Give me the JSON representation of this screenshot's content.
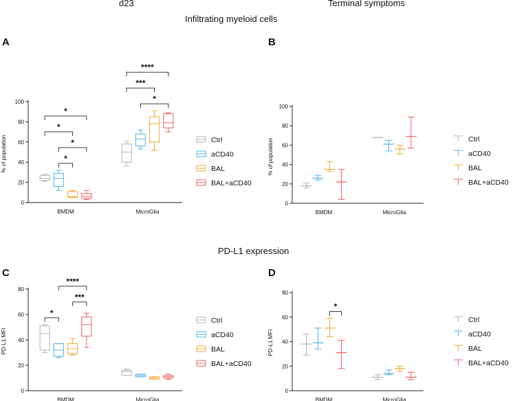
{
  "titles": {
    "left_top": "d23",
    "right_top": "Terminal symptoms",
    "section1": "Infiltrating myeloid cells",
    "section2": "PD-L1 expression"
  },
  "legend": [
    "Ctrl",
    "aCD40",
    "BAL",
    "BAL+aCD40"
  ],
  "colors": {
    "Ctrl": "#b5b5b5",
    "aCD40": "#4fb3e6",
    "BAL": "#f0a830",
    "BAL+aCD40": "#f06060"
  },
  "chart_data": [
    {
      "panel": "A",
      "type": "box",
      "title": "Infiltrating myeloid cells",
      "ylabel": "% of population",
      "ylim": [
        0,
        100
      ],
      "yticks": [
        0,
        20,
        40,
        60,
        80,
        100
      ],
      "categories": [
        "BMDM",
        "MicroGlia"
      ],
      "series": [
        {
          "name": "Ctrl",
          "boxes": [
            {
              "min": 21,
              "q1": 22,
              "med": 24,
              "q3": 27,
              "max": 28
            },
            {
              "min": 36,
              "q1": 40,
              "med": 50,
              "q3": 58,
              "max": 61
            }
          ]
        },
        {
          "name": "aCD40",
          "boxes": [
            {
              "min": 12,
              "q1": 16,
              "med": 24,
              "q3": 29,
              "max": 32
            },
            {
              "min": 53,
              "q1": 56,
              "med": 63,
              "q3": 68,
              "max": 72
            }
          ]
        },
        {
          "name": "BAL",
          "boxes": [
            {
              "min": 5,
              "q1": 5,
              "med": 6,
              "q3": 11,
              "max": 12
            },
            {
              "min": 52,
              "q1": 60,
              "med": 78,
              "q3": 85,
              "max": 91
            }
          ]
        },
        {
          "name": "BAL+aCD40",
          "boxes": [
            {
              "min": 3,
              "q1": 4,
              "med": 6,
              "q3": 9,
              "max": 12
            },
            {
              "min": 70,
              "q1": 74,
              "med": 79,
              "q3": 88,
              "max": 89
            }
          ]
        }
      ],
      "significance": [
        {
          "cat": "BMDM",
          "from": "Ctrl",
          "to": "BAL+aCD40",
          "label": "*"
        },
        {
          "cat": "BMDM",
          "from": "aCD40",
          "to": "BAL+aCD40",
          "label": "*"
        },
        {
          "cat": "BMDM",
          "from": "Ctrl",
          "to": "BAL",
          "label": "*"
        },
        {
          "cat": "BMDM",
          "from": "aCD40",
          "to": "BAL",
          "label": "*"
        },
        {
          "cat": "MicroGlia",
          "from": "Ctrl",
          "to": "BAL+aCD40",
          "label": "****"
        },
        {
          "cat": "MicroGlia",
          "from": "aCD40",
          "to": "BAL+aCD40",
          "label": "*"
        },
        {
          "cat": "MicroGlia",
          "from": "Ctrl",
          "to": "BAL",
          "label": "***"
        }
      ]
    },
    {
      "panel": "B",
      "type": "errorbar",
      "title": "Terminal symptoms",
      "ylabel": "% of population",
      "ylim": [
        0,
        100
      ],
      "yticks": [
        0,
        20,
        40,
        60,
        80,
        100
      ],
      "categories": [
        "BMDM",
        "MicroGlia"
      ],
      "series": [
        {
          "name": "Ctrl",
          "points": [
            {
              "mean": 18,
              "low": 16,
              "high": 21
            },
            {
              "mean": 68,
              "low": 68,
              "high": 68
            }
          ]
        },
        {
          "name": "aCD40",
          "points": [
            {
              "mean": 26,
              "low": 24,
              "high": 29
            },
            {
              "mean": 61,
              "low": 54,
              "high": 65
            }
          ]
        },
        {
          "name": "BAL",
          "points": [
            {
              "mean": 35,
              "low": 33,
              "high": 43
            },
            {
              "mean": 56,
              "low": 51,
              "high": 60
            }
          ]
        },
        {
          "name": "BAL+aCD40",
          "points": [
            {
              "mean": 22,
              "low": 4,
              "high": 35
            },
            {
              "mean": 69,
              "low": 57,
              "high": 89
            }
          ]
        }
      ],
      "significance": []
    },
    {
      "panel": "C",
      "type": "box",
      "title": "PD-L1 expression",
      "ylabel": "PD-L1 MFI",
      "ylim": [
        0,
        80
      ],
      "yticks": [
        0,
        20,
        40,
        60,
        80
      ],
      "categories": [
        "BMDM",
        "MicroGlia"
      ],
      "series": [
        {
          "name": "Ctrl",
          "boxes": [
            {
              "min": 30,
              "q1": 32,
              "med": 45,
              "q3": 51,
              "max": 52
            },
            {
              "min": 12,
              "q1": 12,
              "med": 15,
              "q3": 16,
              "max": 17
            }
          ]
        },
        {
          "name": "aCD40",
          "boxes": [
            {
              "min": 26,
              "q1": 27,
              "med": 32,
              "q3": 37,
              "max": 37
            },
            {
              "min": 11,
              "q1": 11,
              "med": 12,
              "q3": 13,
              "max": 13
            }
          ]
        },
        {
          "name": "BAL",
          "boxes": [
            {
              "min": 28,
              "q1": 29,
              "med": 33,
              "q3": 37,
              "max": 41
            },
            {
              "min": 9,
              "q1": 9,
              "med": 10,
              "q3": 11,
              "max": 11
            }
          ]
        },
        {
          "name": "BAL+aCD40",
          "boxes": [
            {
              "min": 34,
              "q1": 43,
              "med": 52,
              "q3": 58,
              "max": 61
            },
            {
              "min": 9,
              "q1": 10,
              "med": 11,
              "q3": 12,
              "max": 13
            }
          ]
        }
      ],
      "significance": [
        {
          "cat": "BMDM",
          "from": "aCD40",
          "to": "BAL+aCD40",
          "label": "****"
        },
        {
          "cat": "BMDM",
          "from": "Ctrl",
          "to": "aCD40",
          "label": "*"
        },
        {
          "cat": "BMDM",
          "from": "BAL",
          "to": "BAL+aCD40",
          "label": "***"
        }
      ]
    },
    {
      "panel": "D",
      "type": "errorbar",
      "title": "PD-L1 expression",
      "ylabel": "PD-L1 MFI",
      "ylim": [
        0,
        80
      ],
      "yticks": [
        0,
        20,
        40,
        60,
        80
      ],
      "categories": [
        "BMDM",
        "MicroGlia"
      ],
      "series": [
        {
          "name": "Ctrl",
          "points": [
            {
              "mean": 38,
              "low": 29,
              "high": 46
            },
            {
              "mean": 11,
              "low": 9,
              "high": 13
            }
          ]
        },
        {
          "name": "aCD40",
          "points": [
            {
              "mean": 39,
              "low": 34,
              "high": 51
            },
            {
              "mean": 14,
              "low": 13,
              "high": 17
            }
          ]
        },
        {
          "name": "BAL",
          "points": [
            {
              "mean": 51,
              "low": 44,
              "high": 59
            },
            {
              "mean": 18,
              "low": 16,
              "high": 20
            }
          ]
        },
        {
          "name": "BAL+aCD40",
          "points": [
            {
              "mean": 31,
              "low": 18,
              "high": 41
            },
            {
              "mean": 11,
              "low": 9,
              "high": 15
            }
          ]
        }
      ],
      "significance": [
        {
          "cat": "BMDM",
          "from": "BAL",
          "to": "BAL+aCD40",
          "label": "*"
        }
      ]
    }
  ]
}
